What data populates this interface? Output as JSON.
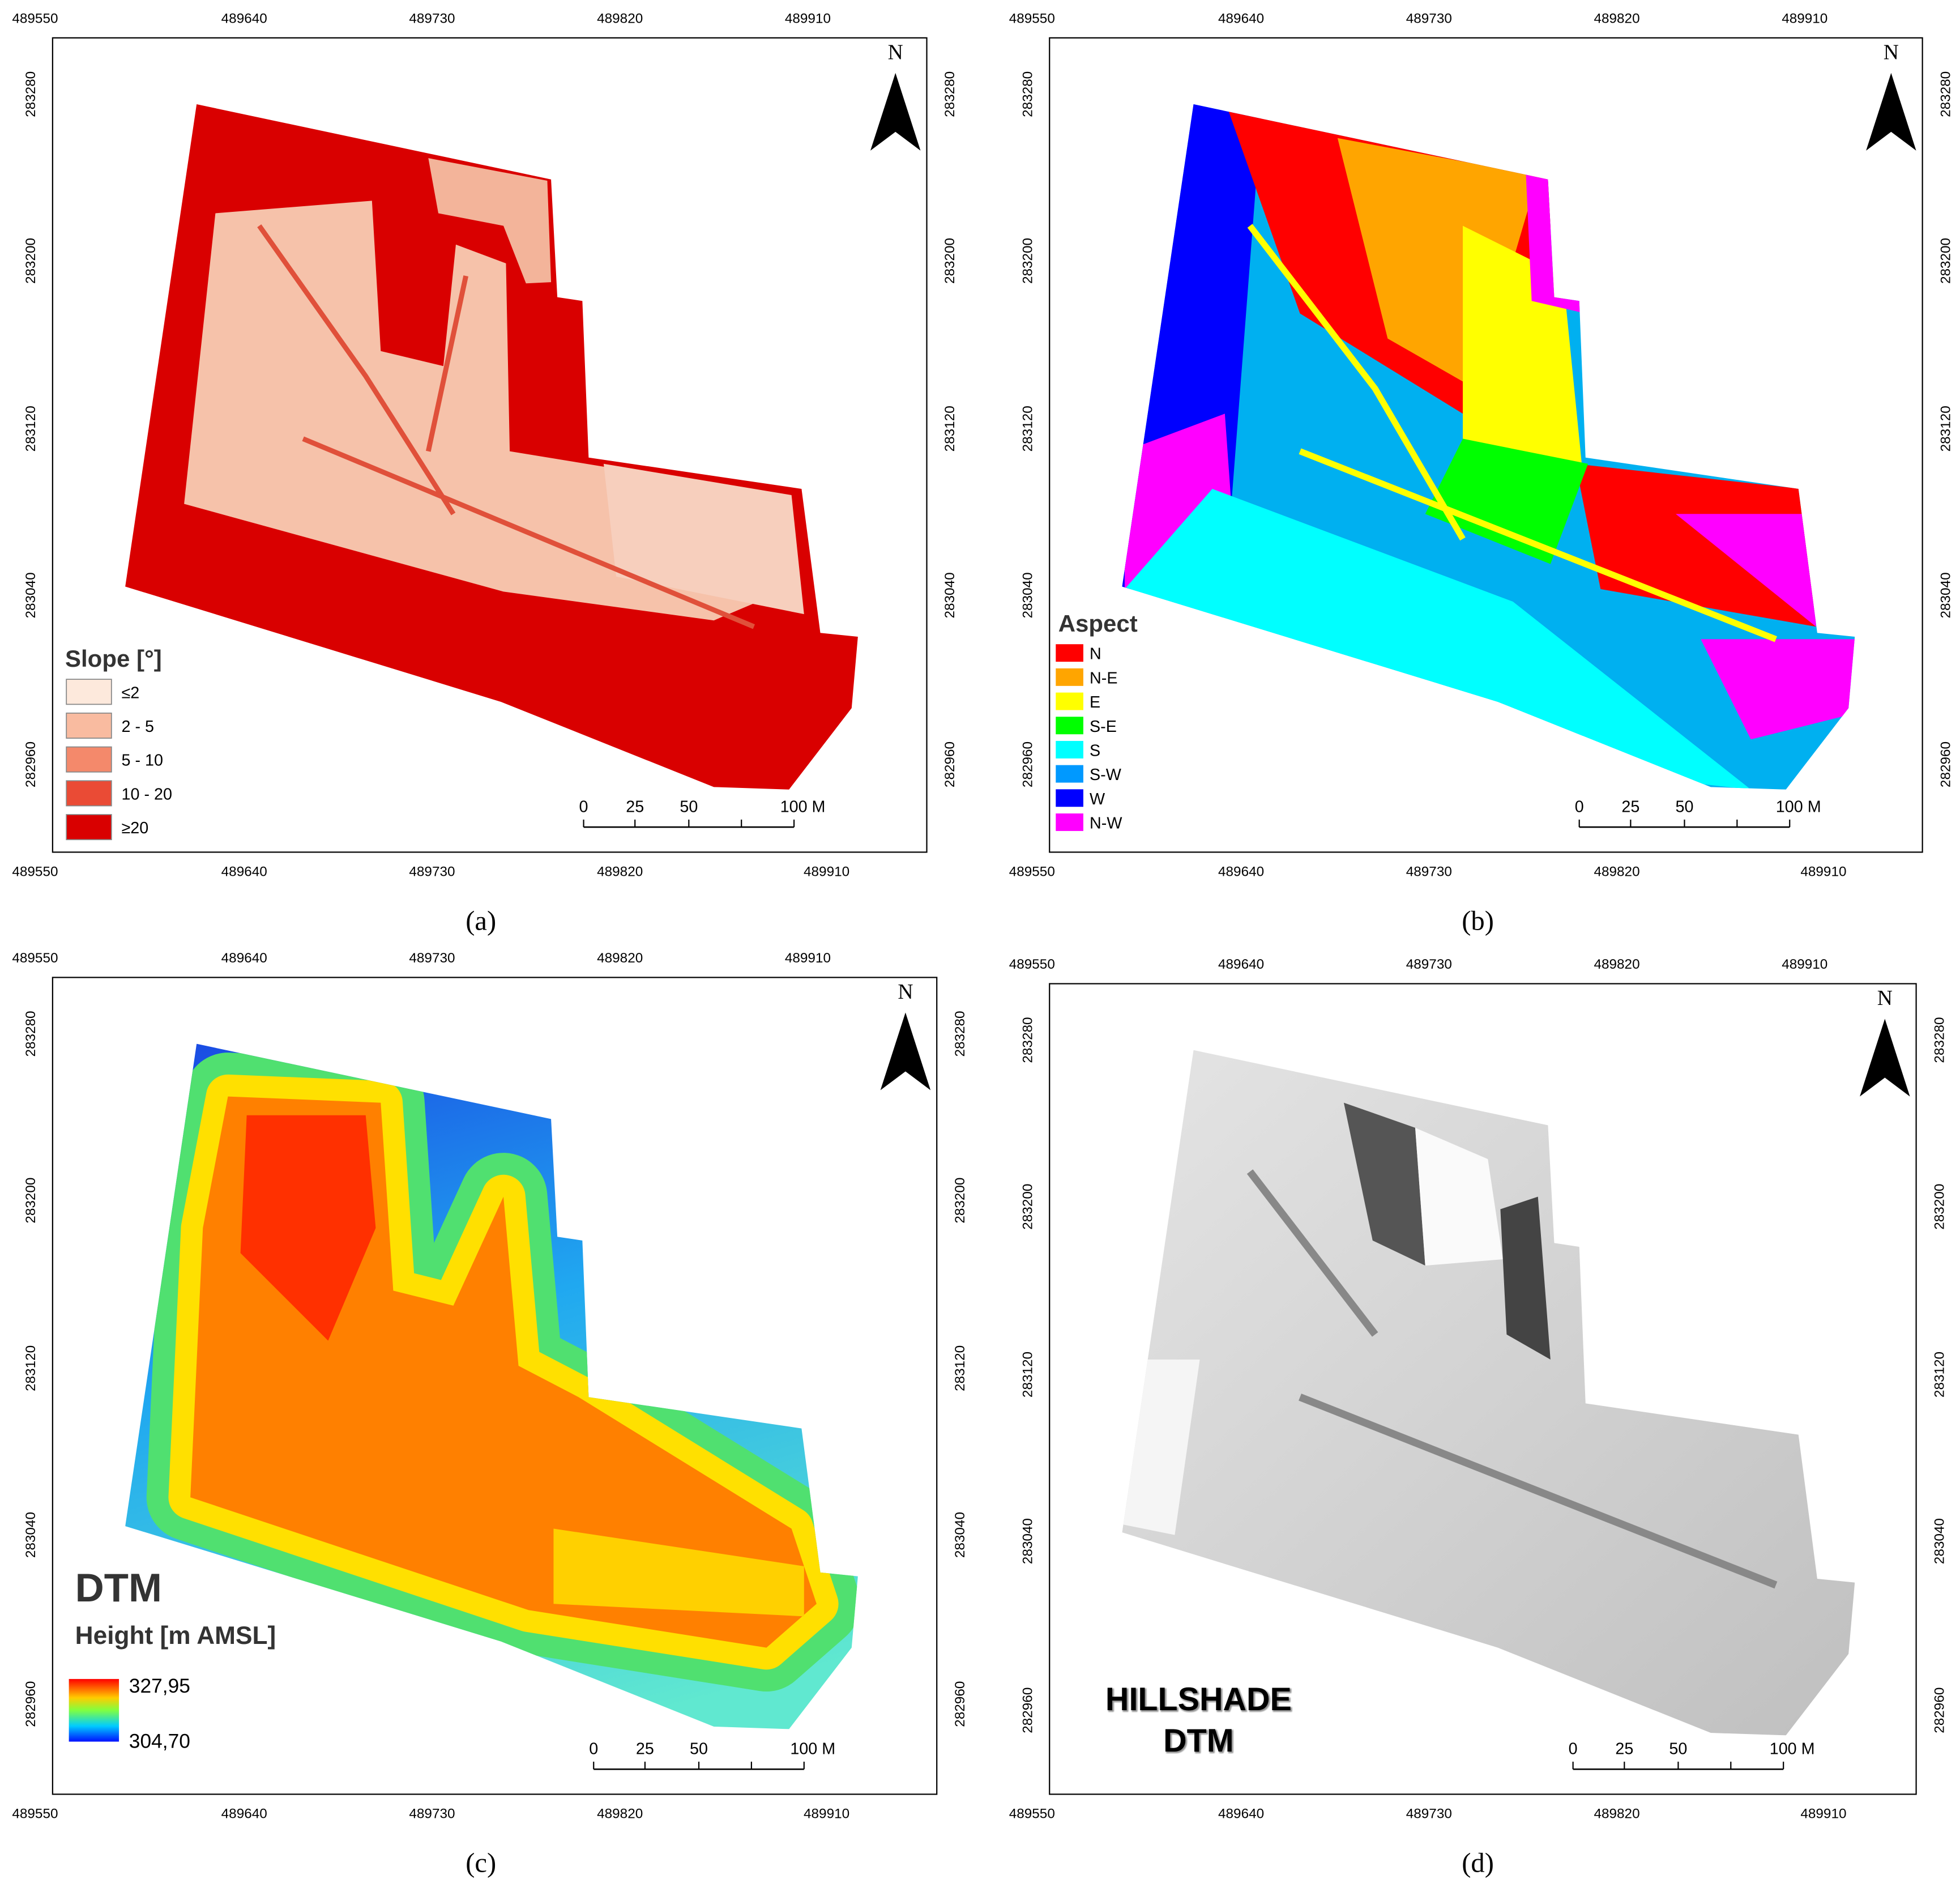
{
  "panels": [
    {
      "caption": "(a)",
      "north": "N",
      "top_ticks": [
        "489550",
        "489640",
        "489730",
        "489820",
        "489910"
      ],
      "bottom_ticks": [
        "489550",
        "489640",
        "489730",
        "489820",
        "489910"
      ],
      "left_ticks": [
        "283280",
        "283200",
        "283120",
        "283040",
        "282960"
      ],
      "right_ticks": [
        "283280",
        "283200",
        "283120",
        "283040",
        "282960"
      ],
      "scale_bar": [
        "0",
        "25",
        "50",
        "100 M"
      ],
      "legend": {
        "title": "Slope [°]",
        "items": [
          "≤2",
          "2 - 5",
          "5 - 10",
          "10 - 20",
          "≥20"
        ],
        "colors": [
          "#fde9dc",
          "#f9bba0",
          "#f4896b",
          "#ea4b35",
          "#d90000"
        ]
      }
    },
    {
      "caption": "(b)",
      "north": "N",
      "top_ticks": [
        "489550",
        "489640",
        "489730",
        "489820",
        "489910"
      ],
      "bottom_ticks": [
        "489550",
        "489640",
        "489730",
        "489820",
        "489910"
      ],
      "left_ticks": [
        "283280",
        "283200",
        "283120",
        "283040",
        "282960"
      ],
      "right_ticks": [
        "283280",
        "283200",
        "283120",
        "283040",
        "282960"
      ],
      "scale_bar": [
        "0",
        "25",
        "50",
        "100 M"
      ],
      "legend": {
        "title": "Aspect",
        "items": [
          "N",
          "N-E",
          "E",
          "S-E",
          "S",
          "S-W",
          "W",
          "N-W"
        ],
        "colors": [
          "#ff0000",
          "#ffa500",
          "#ffff00",
          "#00ff00",
          "#00ffff",
          "#0099ff",
          "#0000ff",
          "#ff00ff"
        ]
      }
    },
    {
      "caption": "(c)",
      "north": "N",
      "top_ticks": [
        "489550",
        "489640",
        "489730",
        "489820",
        "489910"
      ],
      "bottom_ticks": [
        "489550",
        "489640",
        "489730",
        "489820",
        "489910"
      ],
      "left_ticks": [
        "283280",
        "283200",
        "283120",
        "283040",
        "282960"
      ],
      "right_ticks": [
        "283280",
        "283200",
        "283120",
        "283040",
        "282960"
      ],
      "scale_bar": [
        "0",
        "25",
        "50",
        "100 M"
      ],
      "legend": {
        "title": "DTM",
        "subtitle": "Height [m AMSL]",
        "max": "327,95",
        "min": "304,70"
      }
    },
    {
      "caption": "(d)",
      "north": "N",
      "top_ticks": [
        "489550",
        "489640",
        "489730",
        "489820",
        "489910"
      ],
      "bottom_ticks": [
        "489550",
        "489640",
        "489730",
        "489820",
        "489910"
      ],
      "left_ticks": [
        "283280",
        "283200",
        "283120",
        "283040",
        "282960"
      ],
      "right_ticks": [
        "283280",
        "283200",
        "283120",
        "283040",
        "282960"
      ],
      "scale_bar": [
        "0",
        "25",
        "50",
        "100 M"
      ],
      "legend": {
        "lines": [
          "HILLSHADE",
          "DTM"
        ]
      }
    }
  ]
}
